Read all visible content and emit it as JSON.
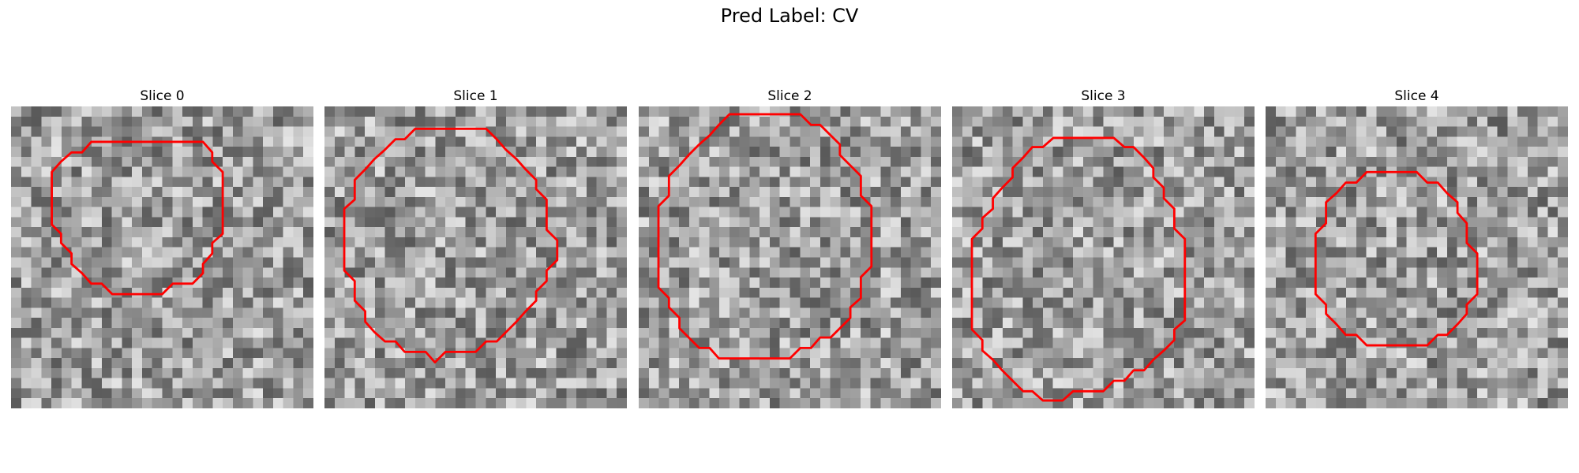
{
  "figure": {
    "title": "Pred Label: CV"
  },
  "contour_color": "#ff0000",
  "panels": [
    {
      "title": "Slice 0",
      "seed": 11,
      "contour": [
        [
          11.1,
          2.7
        ],
        [
          14.6,
          2.7
        ],
        [
          15.3,
          3.5
        ],
        [
          15.3,
          4.2
        ],
        [
          16.1,
          5.0
        ],
        [
          16.1,
          9.7
        ],
        [
          15.3,
          10.4
        ],
        [
          15.3,
          11.2
        ],
        [
          14.6,
          12.0
        ],
        [
          14.6,
          12.7
        ],
        [
          13.8,
          13.5
        ],
        [
          12.3,
          13.5
        ],
        [
          11.5,
          14.3
        ],
        [
          9.2,
          14.3
        ],
        [
          7.7,
          14.3
        ],
        [
          6.9,
          13.5
        ],
        [
          6.1,
          13.5
        ],
        [
          5.4,
          12.7
        ],
        [
          4.6,
          12.0
        ],
        [
          4.6,
          11.2
        ],
        [
          3.8,
          10.4
        ],
        [
          3.8,
          9.7
        ],
        [
          3.1,
          9.0
        ],
        [
          3.1,
          5.0
        ],
        [
          3.8,
          4.2
        ],
        [
          4.6,
          3.5
        ],
        [
          5.4,
          3.5
        ],
        [
          6.1,
          2.7
        ],
        [
          9.2,
          2.7
        ]
      ]
    },
    {
      "title": "Slice 1",
      "seed": 23,
      "contour": [
        [
          9.9,
          1.7
        ],
        [
          12.3,
          1.7
        ],
        [
          13.1,
          2.5
        ],
        [
          13.8,
          3.3
        ],
        [
          14.6,
          4.0
        ],
        [
          15.3,
          4.8
        ],
        [
          16.1,
          5.6
        ],
        [
          16.1,
          6.3
        ],
        [
          16.9,
          7.1
        ],
        [
          16.9,
          9.4
        ],
        [
          17.7,
          10.2
        ],
        [
          17.7,
          11.7
        ],
        [
          16.9,
          12.5
        ],
        [
          16.9,
          13.3
        ],
        [
          16.1,
          14.1
        ],
        [
          16.1,
          14.8
        ],
        [
          15.3,
          15.6
        ],
        [
          14.6,
          16.4
        ],
        [
          13.8,
          17.2
        ],
        [
          13.1,
          17.9
        ],
        [
          12.3,
          17.9
        ],
        [
          11.5,
          18.7
        ],
        [
          9.9,
          18.7
        ],
        [
          9.2,
          18.7
        ],
        [
          8.4,
          19.5
        ],
        [
          7.7,
          18.7
        ],
        [
          6.1,
          18.7
        ],
        [
          5.4,
          17.9
        ],
        [
          4.6,
          17.9
        ],
        [
          3.8,
          17.2
        ],
        [
          3.1,
          16.4
        ],
        [
          3.1,
          15.6
        ],
        [
          2.3,
          14.8
        ],
        [
          2.3,
          13.3
        ],
        [
          1.5,
          12.5
        ],
        [
          1.5,
          7.8
        ],
        [
          2.3,
          7.1
        ],
        [
          2.3,
          5.6
        ],
        [
          3.1,
          4.8
        ],
        [
          3.8,
          4.0
        ],
        [
          4.6,
          3.3
        ],
        [
          5.4,
          2.5
        ],
        [
          6.1,
          2.5
        ],
        [
          6.9,
          1.7
        ]
      ]
    },
    {
      "title": "Slice 2",
      "seed": 37,
      "contour": [
        [
          6.9,
          0.6
        ],
        [
          12.3,
          0.6
        ],
        [
          13.1,
          1.4
        ],
        [
          13.8,
          1.4
        ],
        [
          14.6,
          2.2
        ],
        [
          15.3,
          2.9
        ],
        [
          15.3,
          3.7
        ],
        [
          16.1,
          4.5
        ],
        [
          16.9,
          5.3
        ],
        [
          16.9,
          6.8
        ],
        [
          17.7,
          7.6
        ],
        [
          17.7,
          12.2
        ],
        [
          16.9,
          13.0
        ],
        [
          16.9,
          14.6
        ],
        [
          16.1,
          15.3
        ],
        [
          16.1,
          16.1
        ],
        [
          15.3,
          16.9
        ],
        [
          14.6,
          17.6
        ],
        [
          13.8,
          17.6
        ],
        [
          13.1,
          18.4
        ],
        [
          12.3,
          18.4
        ],
        [
          11.5,
          19.2
        ],
        [
          6.1,
          19.2
        ],
        [
          5.4,
          18.4
        ],
        [
          4.6,
          18.4
        ],
        [
          3.8,
          17.6
        ],
        [
          3.1,
          16.9
        ],
        [
          3.1,
          16.1
        ],
        [
          2.3,
          15.3
        ],
        [
          2.3,
          14.6
        ],
        [
          1.5,
          13.8
        ],
        [
          1.5,
          7.6
        ],
        [
          2.3,
          6.8
        ],
        [
          2.3,
          5.3
        ],
        [
          3.1,
          4.5
        ],
        [
          3.8,
          3.7
        ],
        [
          4.6,
          2.9
        ],
        [
          5.4,
          2.2
        ],
        [
          6.1,
          1.4
        ]
      ]
    },
    {
      "title": "Slice 3",
      "seed": 52,
      "contour": [
        [
          8.4,
          2.4
        ],
        [
          12.3,
          2.4
        ],
        [
          13.1,
          3.1
        ],
        [
          13.8,
          3.1
        ],
        [
          14.6,
          3.9
        ],
        [
          15.3,
          4.7
        ],
        [
          15.3,
          5.4
        ],
        [
          16.1,
          6.2
        ],
        [
          16.1,
          7.0
        ],
        [
          16.9,
          7.8
        ],
        [
          16.9,
          9.3
        ],
        [
          17.7,
          10.1
        ],
        [
          17.7,
          16.3
        ],
        [
          16.9,
          17.0
        ],
        [
          16.9,
          17.8
        ],
        [
          16.1,
          18.6
        ],
        [
          15.3,
          19.3
        ],
        [
          14.6,
          20.1
        ],
        [
          13.8,
          20.1
        ],
        [
          13.1,
          20.9
        ],
        [
          12.3,
          20.9
        ],
        [
          11.5,
          21.7
        ],
        [
          9.9,
          21.7
        ],
        [
          9.2,
          21.7
        ],
        [
          8.4,
          22.4
        ],
        [
          6.9,
          22.4
        ],
        [
          6.1,
          21.7
        ],
        [
          5.4,
          21.7
        ],
        [
          4.6,
          20.9
        ],
        [
          3.8,
          20.1
        ],
        [
          3.1,
          19.3
        ],
        [
          2.3,
          18.6
        ],
        [
          2.3,
          17.8
        ],
        [
          1.5,
          17.0
        ],
        [
          1.5,
          10.1
        ],
        [
          2.3,
          9.3
        ],
        [
          2.3,
          8.5
        ],
        [
          3.1,
          7.8
        ],
        [
          3.1,
          7.0
        ],
        [
          3.8,
          6.2
        ],
        [
          4.6,
          5.4
        ],
        [
          4.6,
          4.7
        ],
        [
          5.4,
          3.9
        ],
        [
          6.1,
          3.1
        ],
        [
          6.9,
          3.1
        ],
        [
          7.7,
          2.4
        ]
      ]
    },
    {
      "title": "Slice 4",
      "seed": 68,
      "contour": [
        [
          8.4,
          5.0
        ],
        [
          11.5,
          5.0
        ],
        [
          12.3,
          5.8
        ],
        [
          13.1,
          5.8
        ],
        [
          13.8,
          6.6
        ],
        [
          14.6,
          7.3
        ],
        [
          14.6,
          8.1
        ],
        [
          15.3,
          8.9
        ],
        [
          15.3,
          10.4
        ],
        [
          16.1,
          11.2
        ],
        [
          16.1,
          14.3
        ],
        [
          15.3,
          15.1
        ],
        [
          15.3,
          15.8
        ],
        [
          14.6,
          16.6
        ],
        [
          13.8,
          17.4
        ],
        [
          13.1,
          17.4
        ],
        [
          12.3,
          18.2
        ],
        [
          7.7,
          18.2
        ],
        [
          6.9,
          17.4
        ],
        [
          6.1,
          17.4
        ],
        [
          5.4,
          16.6
        ],
        [
          4.6,
          15.8
        ],
        [
          4.6,
          15.1
        ],
        [
          3.8,
          14.3
        ],
        [
          3.8,
          9.7
        ],
        [
          4.6,
          8.9
        ],
        [
          4.6,
          7.3
        ],
        [
          5.4,
          6.6
        ],
        [
          6.1,
          5.8
        ],
        [
          6.9,
          5.8
        ],
        [
          7.7,
          5.0
        ]
      ]
    }
  ]
}
